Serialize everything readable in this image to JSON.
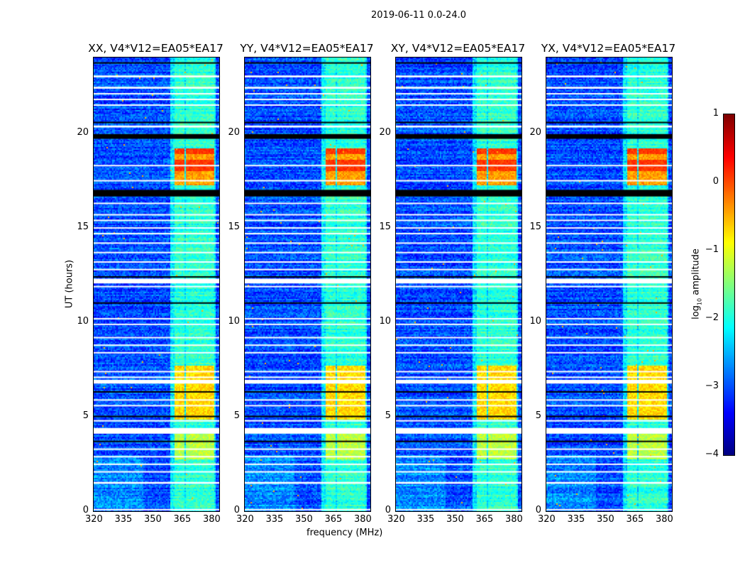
{
  "chart_data": {
    "type": "heatmap",
    "title": "2019-06-11 0.0-24.0",
    "xlabel": "frequency (MHz)",
    "ylabel": "UT (hours)",
    "xlim": [
      320,
      384
    ],
    "ylim": [
      0,
      24
    ],
    "xticks": [
      "320",
      "335",
      "350",
      "365",
      "380"
    ],
    "xtick_values": [
      320,
      335,
      350,
      365,
      380
    ],
    "yticks": [
      "0",
      "5",
      "10",
      "15",
      "20"
    ],
    "ytick_values": [
      0,
      5,
      10,
      15,
      20
    ],
    "panels": [
      {
        "title": "XX, V4*V12=EA05*EA17",
        "band_boost": 1.0
      },
      {
        "title": "YY, V4*V12=EA05*EA17",
        "band_boost": 1.05
      },
      {
        "title": "XY, V4*V12=EA05*EA17",
        "band_boost": 0.95
      },
      {
        "title": "YX, V4*V12=EA05*EA17",
        "band_boost": 0.95
      }
    ],
    "colorbar": {
      "label_main": "log",
      "label_sub": "10",
      "label_rest": " amplitude",
      "range": [
        -4,
        1
      ],
      "ticks": [
        "1",
        "0",
        "−1",
        "−2",
        "−3",
        "−4"
      ],
      "tick_values": [
        1,
        0,
        -1,
        -2,
        -3,
        -4
      ],
      "colormap": "jet"
    },
    "bright_band_mhz": [
      [
        361,
        366
      ],
      [
        367,
        371.5
      ],
      [
        372,
        376.5
      ],
      [
        377,
        381
      ]
    ],
    "bright_periods_hours": [
      [
        17.3,
        19.2,
        0.0
      ],
      [
        4.9,
        7.7,
        -0.3
      ],
      [
        2.8,
        4.1,
        -0.8
      ]
    ],
    "flagged_white_hours": [
      [
        22.95,
        23.05
      ],
      [
        22.35,
        22.45
      ],
      [
        22.05,
        22.12
      ],
      [
        21.75,
        21.82
      ],
      [
        21.45,
        21.52
      ],
      [
        20.3,
        20.4
      ],
      [
        18.25,
        18.32
      ],
      [
        17.45,
        17.52
      ],
      [
        16.25,
        16.32
      ],
      [
        15.65,
        15.72
      ],
      [
        15.35,
        15.42
      ],
      [
        14.95,
        15.02
      ],
      [
        14.65,
        14.72
      ],
      [
        14.15,
        14.22
      ],
      [
        13.65,
        13.72
      ],
      [
        13.15,
        13.22
      ],
      [
        12.75,
        12.82
      ],
      [
        12.05,
        12.3
      ],
      [
        11.85,
        11.92
      ],
      [
        10.15,
        10.22
      ],
      [
        9.85,
        9.92
      ],
      [
        9.15,
        9.22
      ],
      [
        8.75,
        8.82
      ],
      [
        8.35,
        8.42
      ],
      [
        7.35,
        7.42
      ],
      [
        7.05,
        7.12
      ],
      [
        6.75,
        6.95
      ],
      [
        5.85,
        5.92
      ],
      [
        5.55,
        5.62
      ],
      [
        4.75,
        4.82
      ],
      [
        4.1,
        4.4
      ],
      [
        3.25,
        3.32
      ],
      [
        2.85,
        2.92
      ],
      [
        2.45,
        2.52
      ],
      [
        2.05,
        2.12
      ],
      [
        1.45,
        1.55
      ],
      [
        0.05,
        0.12
      ]
    ],
    "flagged_black_hours": [
      [
        23.7,
        23.75
      ],
      [
        20.55,
        20.6
      ],
      [
        19.7,
        19.95
      ],
      [
        16.65,
        17.0
      ],
      [
        11.0,
        11.05
      ],
      [
        6.3,
        6.35
      ],
      [
        4.98,
        5.05
      ],
      [
        3.68,
        3.73
      ],
      [
        12.38,
        12.43
      ]
    ]
  }
}
